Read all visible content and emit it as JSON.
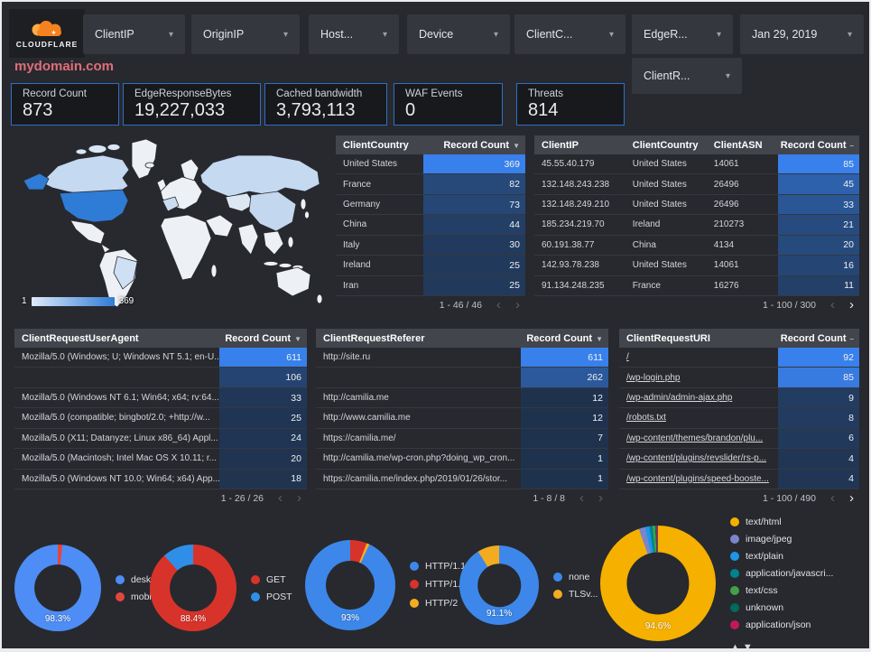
{
  "brand": {
    "logo_text": "CLOUDFLARE"
  },
  "icons": {
    "caret": "▾",
    "prev": "‹",
    "next": "›",
    "legend_up": "▲",
    "legend_down": "▼"
  },
  "filters": {
    "row1": [
      {
        "label": "ClientIP"
      },
      {
        "label": "OriginIP"
      },
      {
        "label": "Host..."
      },
      {
        "label": "Device"
      },
      {
        "label": "ClientC..."
      },
      {
        "label": "EdgeR..."
      },
      {
        "label": "Jan 29, 2019"
      }
    ],
    "row2": [
      {
        "label": "ClientR..."
      }
    ]
  },
  "page_title": "mydomain.com",
  "scorecards": [
    {
      "label": "Record Count",
      "value": "873"
    },
    {
      "label": "EdgeResponseBytes",
      "value": "19,227,033"
    },
    {
      "label": "Cached bandwidth",
      "value": "3,793,113"
    },
    {
      "label": "WAF Events",
      "value": "0"
    },
    {
      "label": "Threats",
      "value": "814"
    }
  ],
  "map": {
    "legend_min": "1",
    "legend_max": "369",
    "min_color": "#dfeafc",
    "max_color": "#2e7cd6",
    "top_country": "United States"
  },
  "tables": {
    "client_country": {
      "columns": [
        "ClientCountry",
        "Record Count"
      ],
      "sort_glyph": "▼",
      "max": 369,
      "rows": [
        [
          "United States",
          369
        ],
        [
          "France",
          82
        ],
        [
          "Germany",
          73
        ],
        [
          "China",
          44
        ],
        [
          "Italy",
          30
        ],
        [
          "Ireland",
          25
        ],
        [
          "Iran",
          25
        ]
      ],
      "pagination": {
        "label": "1 - 46 / 46",
        "prev_active": false,
        "next_active": false
      }
    },
    "client_ip": {
      "columns": [
        "ClientIP",
        "ClientCountry",
        "ClientASN",
        "Record Count"
      ],
      "sort_glyph": "–",
      "max": 85,
      "rows": [
        [
          "45.55.40.179",
          "United States",
          "14061",
          85
        ],
        [
          "132.148.243.238",
          "United States",
          "26496",
          45
        ],
        [
          "132.148.249.210",
          "United States",
          "26496",
          33
        ],
        [
          "185.234.219.70",
          "Ireland",
          "210273",
          21
        ],
        [
          "60.191.38.77",
          "China",
          "4134",
          20
        ],
        [
          "142.93.78.238",
          "United States",
          "14061",
          16
        ],
        [
          "91.134.248.235",
          "France",
          "16276",
          11
        ]
      ],
      "pagination": {
        "label": "1 - 100 / 300",
        "prev_active": false,
        "next_active": true
      }
    },
    "user_agent": {
      "columns": [
        "ClientRequestUserAgent",
        "Record Count"
      ],
      "sort_glyph": "▼",
      "max": 611,
      "rows": [
        [
          "Mozilla/5.0 (Windows; U; Windows NT 5.1; en-U...",
          611
        ],
        [
          "",
          106
        ],
        [
          "Mozilla/5.0 (Windows NT 6.1; Win64; x64; rv:64...",
          33
        ],
        [
          "Mozilla/5.0 (compatible; bingbot/2.0; +http://w...",
          25
        ],
        [
          "Mozilla/5.0 (X11; Datanyze; Linux x86_64) Appl...",
          24
        ],
        [
          "Mozilla/5.0 (Macintosh; Intel Mac OS X 10.11; r...",
          20
        ],
        [
          "Mozilla/5.0 (Windows NT 10.0; Win64; x64) App...",
          18
        ]
      ],
      "pagination": {
        "label": "1 - 26 / 26",
        "prev_active": false,
        "next_active": false
      }
    },
    "referer": {
      "columns": [
        "ClientRequestReferer",
        "Record Count"
      ],
      "sort_glyph": "▼",
      "max": 611,
      "rows": [
        [
          "http://site.ru",
          611
        ],
        [
          "",
          262
        ],
        [
          "http://camilia.me",
          12
        ],
        [
          "http://www.camilia.me",
          12
        ],
        [
          "https://camilia.me/",
          7
        ],
        [
          "http://camilia.me/wp-cron.php?doing_wp_cron...",
          1
        ],
        [
          "https://camilia.me/index.php/2019/01/26/stor...",
          1
        ]
      ],
      "pagination": {
        "label": "1 - 8 / 8",
        "prev_active": false,
        "next_active": false
      }
    },
    "uri": {
      "columns": [
        "ClientRequestURI",
        "Record Count"
      ],
      "sort_glyph": "–",
      "max": 92,
      "rows": [
        [
          "/",
          92
        ],
        [
          "/wp-login.php",
          85
        ],
        [
          "/wp-admin/admin-ajax.php",
          9
        ],
        [
          "/robots.txt",
          8
        ],
        [
          "/wp-content/themes/brandon/plu...",
          6
        ],
        [
          "/wp-content/plugins/revslider/rs-p...",
          4
        ],
        [
          "/wp-content/plugins/speed-booste...",
          4
        ]
      ],
      "pagination": {
        "label": "1 - 100 / 490",
        "prev_active": false,
        "next_active": true
      }
    }
  },
  "chart_data": [
    {
      "type": "pie",
      "name": "device-type",
      "percent_label": "98.3%",
      "slices": [
        {
          "label": "deskt...",
          "value": 98.3,
          "color": "#4e8df5"
        },
        {
          "label": "mobile",
          "value": 1.7,
          "color": "#e2473c"
        }
      ]
    },
    {
      "type": "pie",
      "name": "request-method",
      "percent_label": "88.4%",
      "slices": [
        {
          "label": "GET",
          "value": 88.4,
          "color": "#d8332a"
        },
        {
          "label": "POST",
          "value": 11.6,
          "color": "#2f8fe8"
        }
      ]
    },
    {
      "type": "pie",
      "name": "http-protocol",
      "percent_label": "93%",
      "slices": [
        {
          "label": "HTTP/1.1",
          "value": 93,
          "color": "#3d87ea"
        },
        {
          "label": "HTTP/1.0",
          "value": 6,
          "color": "#d8332a"
        },
        {
          "label": "HTTP/2",
          "value": 1,
          "color": "#f3ac20"
        }
      ]
    },
    {
      "type": "pie",
      "name": "tls-version",
      "percent_label": "91.1%",
      "slices": [
        {
          "label": "none",
          "value": 91.1,
          "color": "#3d87ea"
        },
        {
          "label": "TLSv...",
          "value": 8.9,
          "color": "#f3ac20"
        }
      ]
    },
    {
      "type": "pie",
      "name": "content-type",
      "percent_label": "94.6%",
      "has_legend_pager": true,
      "slices": [
        {
          "label": "text/html",
          "value": 94.6,
          "color": "#f5b000"
        },
        {
          "label": "image/jpeg",
          "value": 1.8,
          "color": "#7986cb"
        },
        {
          "label": "text/plain",
          "value": 1.2,
          "color": "#1e96e8"
        },
        {
          "label": "application/javascri...",
          "value": 0.9,
          "color": "#00838f"
        },
        {
          "label": "text/css",
          "value": 0.7,
          "color": "#43a047"
        },
        {
          "label": "unknown",
          "value": 0.4,
          "color": "#00695c"
        },
        {
          "label": "application/json",
          "value": 0.4,
          "color": "#c2185b"
        }
      ]
    }
  ]
}
